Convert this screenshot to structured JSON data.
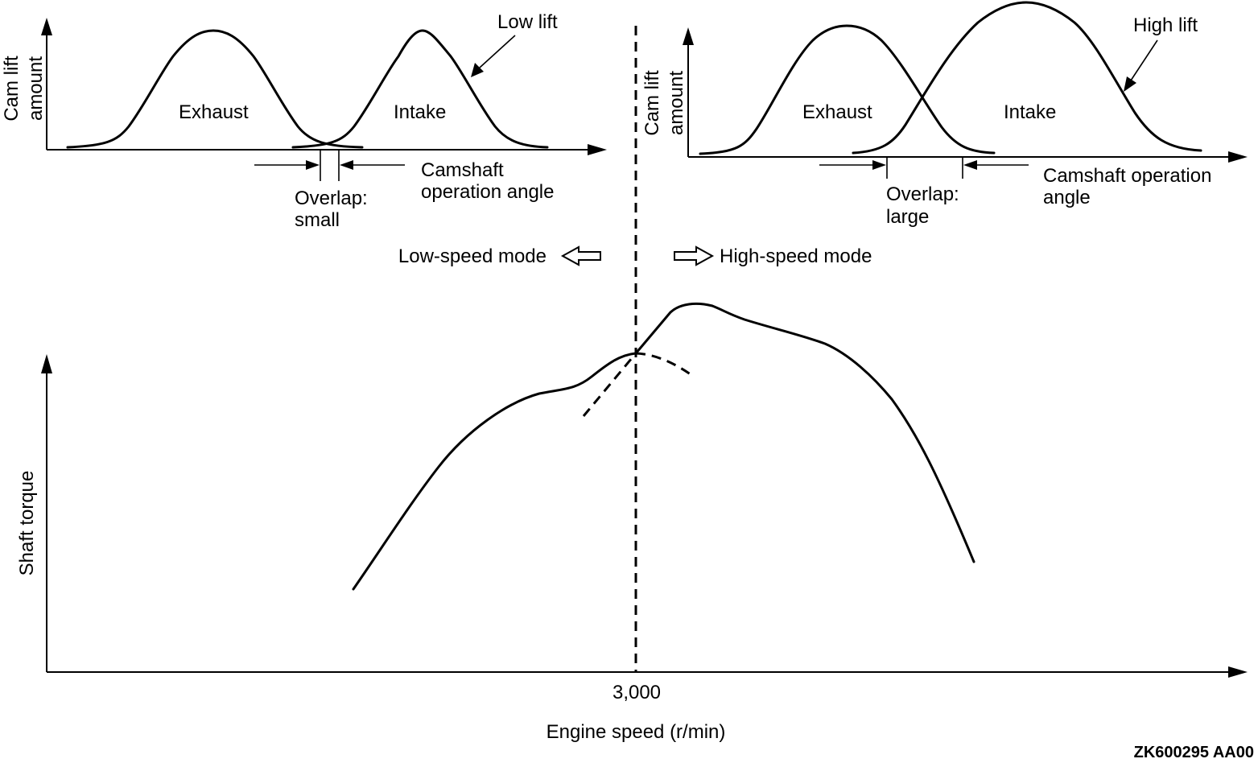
{
  "low_panel": {
    "y_label_line1": "Cam lift",
    "y_label_line2": "amount",
    "exhaust": "Exhaust",
    "intake": "Intake",
    "lift": "Low lift",
    "angle_line1": "Camshaft",
    "angle_line2": "operation angle",
    "overlap_line1": "Overlap:",
    "overlap_line2": "small"
  },
  "high_panel": {
    "y_label_line1": "Cam lift",
    "y_label_line2": "amount",
    "exhaust": "Exhaust",
    "intake": "Intake",
    "lift": "High lift",
    "angle_line1": "Camshaft operation",
    "angle_line2": "angle",
    "overlap_line1": "Overlap:",
    "overlap_line2": "large"
  },
  "modes": {
    "low": "Low-speed mode",
    "high": "High-speed mode"
  },
  "torque_chart": {
    "y_label": "Shaft torque",
    "x_label": "Engine speed (r/min)",
    "x_tick": "3,000"
  },
  "figure_code": "ZK600295 AA00"
}
